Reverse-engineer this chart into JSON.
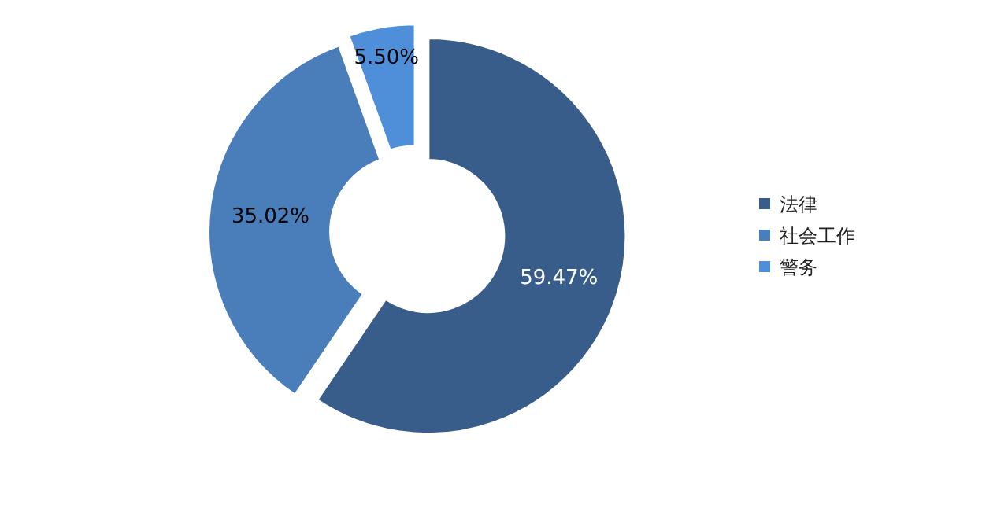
{
  "chart_data": {
    "type": "donut",
    "categories": [
      "法律",
      "社会工作",
      "警务"
    ],
    "values": [
      59.47,
      35.02,
      5.5
    ],
    "colors": [
      "#385d8a",
      "#4a7ebb",
      "#4f8fd9"
    ],
    "value_labels": [
      "59.47%",
      "35.02%",
      "5.50%"
    ],
    "legend": "right"
  }
}
